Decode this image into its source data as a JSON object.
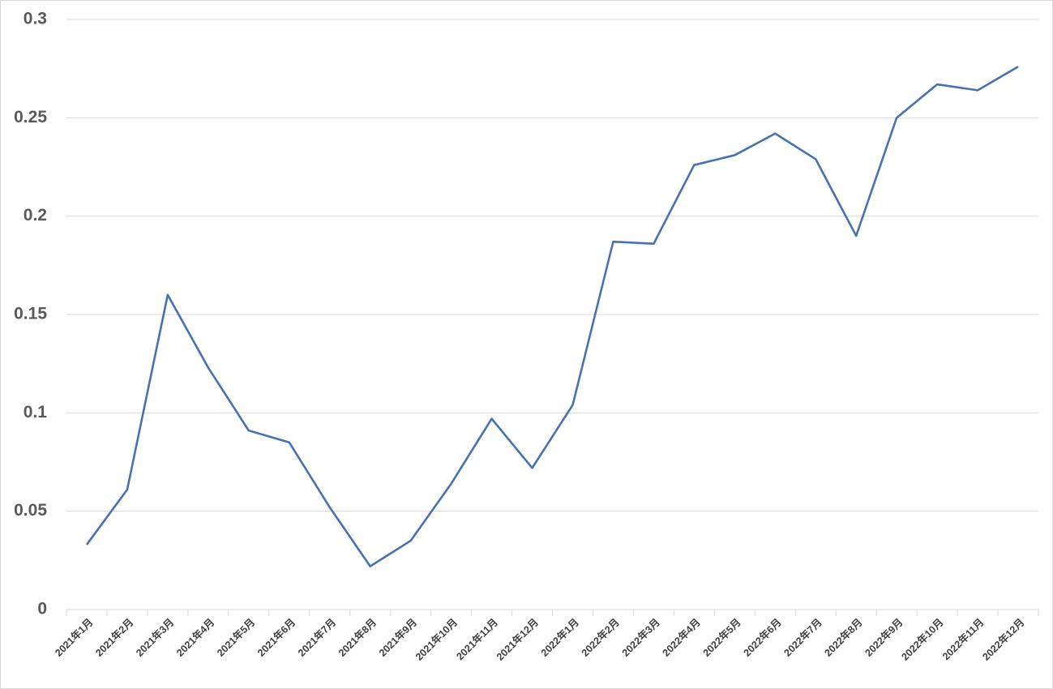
{
  "chart_data": {
    "type": "line",
    "categories": [
      "2021年1月",
      "2021年2月",
      "2021年3月",
      "2021年4月",
      "2021年5月",
      "2021年6月",
      "2021年7月",
      "2021年8月",
      "2021年9月",
      "2021年10月",
      "2021年11月",
      "2021年12月",
      "2022年1月",
      "2022年2月",
      "2022年3月",
      "2022年4月",
      "2022年5月",
      "2022年6月",
      "2022年7月",
      "2022年8月",
      "2022年9月",
      "2022年10月",
      "2022年11月",
      "2022年12月"
    ],
    "values": [
      0.033,
      0.061,
      0.16,
      0.123,
      0.091,
      0.085,
      0.052,
      0.022,
      0.035,
      0.064,
      0.097,
      0.072,
      0.104,
      0.187,
      0.186,
      0.226,
      0.231,
      0.242,
      0.229,
      0.19,
      0.25,
      0.267,
      0.264,
      0.276
    ],
    "color": "#4672b4",
    "ylim": [
      0,
      0.3
    ],
    "yticks": [
      0,
      0.05,
      0.1,
      0.15,
      0.2,
      0.25,
      0.3
    ],
    "grid": true
  }
}
